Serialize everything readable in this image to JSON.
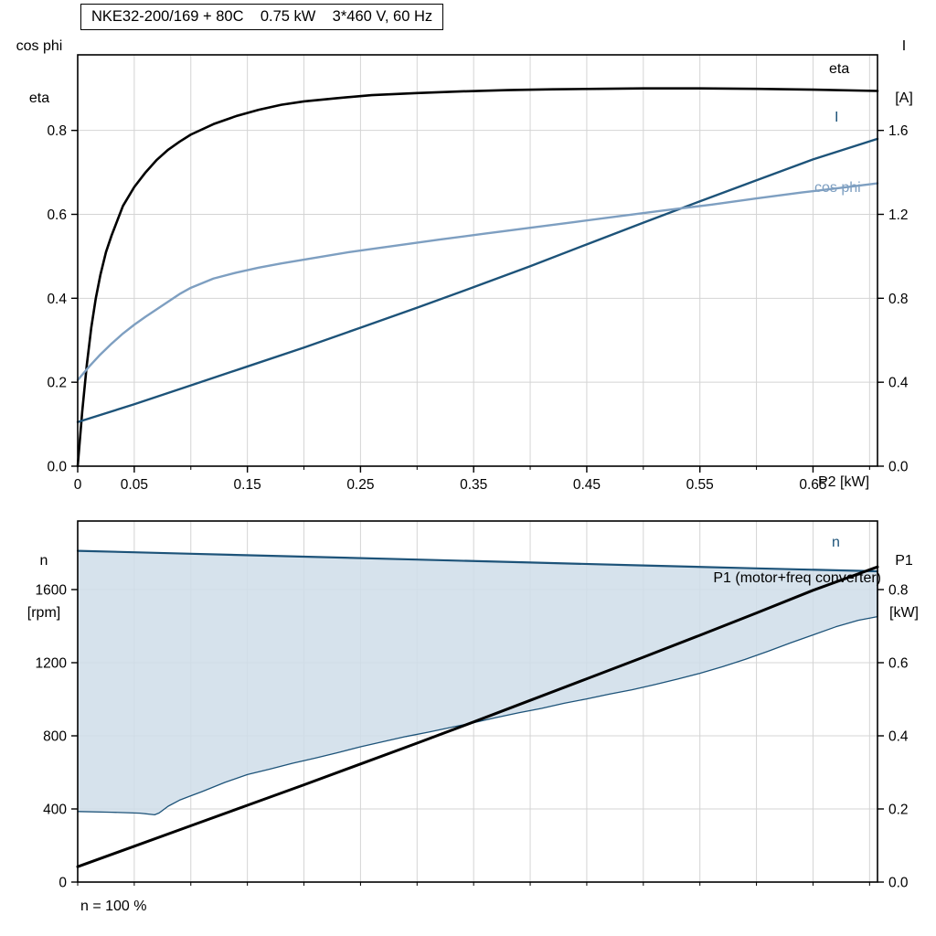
{
  "title_box": "NKE32-200/169 + 80C    0.75 kW    3*460 V, 60 Hz",
  "colors": {
    "black": "#000000",
    "dark_blue": "#1d5379",
    "light_blue": "#7e9fc1",
    "band_fill": "#cfdde9",
    "grid": "#d4d4d4"
  },
  "axes_corner_labels": {
    "top_left_1": "cos phi",
    "top_left_2": "eta",
    "top_right_1": "I",
    "top_right_2": "[A]",
    "bottom_left_1": "n",
    "bottom_left_2": "[rpm]",
    "bottom_right_1": "P1",
    "bottom_right_2": "[kW]"
  },
  "x_axis_label": "P2 [kW]",
  "curve_labels": {
    "eta": "eta",
    "current": "I",
    "cos_phi": "cos phi",
    "speed": "n",
    "p1": "P1 (motor+freq converter)",
    "speed_note": "n = 100 %"
  },
  "chart_data": [
    {
      "type": "line",
      "title": "NKE32-200/169 + 80C  0.75 kW  3*460 V, 60 Hz",
      "xlabel": "P2 [kW]",
      "ylabel_left": "cos phi / eta",
      "ylabel_right": "I [A]",
      "xlim": [
        0,
        0.707
      ],
      "ylim_left": [
        0,
        0.98
      ],
      "ylim_right": [
        0,
        1.96
      ],
      "grid_x_step": 0.05,
      "grid_y_left_step": 0.2,
      "legend_position": "right-inline",
      "x_ticks": {
        "values": [
          0,
          0.05,
          0.15,
          0.25,
          0.35,
          0.45,
          0.55,
          0.65
        ],
        "labels": [
          "0",
          "0.05",
          "0.15",
          "0.25",
          "0.35",
          "0.45",
          "0.55",
          "0.65"
        ]
      },
      "y_ticks_left": {
        "values": [
          0,
          0.2,
          0.4,
          0.6,
          0.8
        ],
        "labels": [
          "0.0",
          "0.2",
          "0.4",
          "0.6",
          "0.8"
        ]
      },
      "y_ticks_right": {
        "values": [
          0,
          0.4,
          0.8,
          1.2,
          1.6
        ],
        "labels": [
          "0.0",
          "0.4",
          "0.8",
          "1.2",
          "1.6"
        ]
      },
      "series": [
        {
          "name": "eta",
          "axis": "left",
          "color": "#000000",
          "width": 2.6,
          "points": [
            [
              0,
              0
            ],
            [
              0.004,
              0.13
            ],
            [
              0.008,
              0.24
            ],
            [
              0.012,
              0.33
            ],
            [
              0.016,
              0.4
            ],
            [
              0.02,
              0.455
            ],
            [
              0.025,
              0.51
            ],
            [
              0.03,
              0.55
            ],
            [
              0.04,
              0.62
            ],
            [
              0.05,
              0.665
            ],
            [
              0.06,
              0.7
            ],
            [
              0.07,
              0.73
            ],
            [
              0.08,
              0.754
            ],
            [
              0.09,
              0.773
            ],
            [
              0.1,
              0.79
            ],
            [
              0.12,
              0.815
            ],
            [
              0.14,
              0.834
            ],
            [
              0.16,
              0.849
            ],
            [
              0.18,
              0.861
            ],
            [
              0.2,
              0.869
            ],
            [
              0.23,
              0.877
            ],
            [
              0.26,
              0.884
            ],
            [
              0.3,
              0.889
            ],
            [
              0.34,
              0.893
            ],
            [
              0.38,
              0.896
            ],
            [
              0.42,
              0.898
            ],
            [
              0.46,
              0.899
            ],
            [
              0.5,
              0.9
            ],
            [
              0.55,
              0.9
            ],
            [
              0.6,
              0.899
            ],
            [
              0.65,
              0.897
            ],
            [
              0.707,
              0.894
            ]
          ]
        },
        {
          "name": "I",
          "axis": "right",
          "color": "#1d5379",
          "width": 2.4,
          "points": [
            [
              0,
              0.21
            ],
            [
              0.05,
              0.295
            ],
            [
              0.1,
              0.385
            ],
            [
              0.15,
              0.475
            ],
            [
              0.2,
              0.565
            ],
            [
              0.25,
              0.66
            ],
            [
              0.3,
              0.755
            ],
            [
              0.35,
              0.853
            ],
            [
              0.4,
              0.953
            ],
            [
              0.45,
              1.057
            ],
            [
              0.5,
              1.16
            ],
            [
              0.55,
              1.262
            ],
            [
              0.6,
              1.362
            ],
            [
              0.65,
              1.462
            ],
            [
              0.707,
              1.56
            ]
          ]
        },
        {
          "name": "cos phi",
          "axis": "left",
          "color": "#7e9fc1",
          "width": 2.4,
          "points": [
            [
              0,
              0.205
            ],
            [
              0.01,
              0.237
            ],
            [
              0.02,
              0.266
            ],
            [
              0.03,
              0.292
            ],
            [
              0.04,
              0.316
            ],
            [
              0.05,
              0.337
            ],
            [
              0.06,
              0.356
            ],
            [
              0.07,
              0.374
            ],
            [
              0.08,
              0.392
            ],
            [
              0.09,
              0.41
            ],
            [
              0.1,
              0.425
            ],
            [
              0.12,
              0.447
            ],
            [
              0.14,
              0.461
            ],
            [
              0.16,
              0.473
            ],
            [
              0.18,
              0.483
            ],
            [
              0.2,
              0.492
            ],
            [
              0.24,
              0.51
            ],
            [
              0.28,
              0.525
            ],
            [
              0.32,
              0.54
            ],
            [
              0.36,
              0.554
            ],
            [
              0.4,
              0.568
            ],
            [
              0.44,
              0.582
            ],
            [
              0.48,
              0.596
            ],
            [
              0.52,
              0.61
            ],
            [
              0.56,
              0.623
            ],
            [
              0.6,
              0.638
            ],
            [
              0.64,
              0.652
            ],
            [
              0.68,
              0.665
            ],
            [
              0.707,
              0.674
            ]
          ]
        }
      ]
    },
    {
      "type": "line",
      "title": "",
      "xlabel": "",
      "ylabel_left": "n [rpm]",
      "ylabel_right": "P1 [kW]",
      "xlim": [
        0,
        0.707
      ],
      "ylim_left": [
        0,
        1975
      ],
      "ylim_right": [
        0,
        0.9875
      ],
      "grid_x_step": 0.05,
      "grid_y_left_step": 400,
      "annotation": "n = 100 %",
      "x_ticks": {
        "values": [],
        "labels": []
      },
      "y_ticks_left": {
        "values": [
          0,
          400,
          800,
          1200,
          1600
        ],
        "labels": [
          "0",
          "400",
          "800",
          "1200",
          "1600"
        ]
      },
      "y_ticks_right": {
        "values": [
          0,
          0.2,
          0.4,
          0.6,
          0.8
        ],
        "labels": [
          "0.0",
          "0.2",
          "0.4",
          "0.6",
          "0.8"
        ]
      },
      "band": {
        "fill": "#cfdde9",
        "upper_series": "n",
        "lower_series": "n envelope lower"
      },
      "series": [
        {
          "name": "n",
          "axis": "left",
          "color": "#1d5379",
          "width": 2.2,
          "points": [
            [
              0,
              1812
            ],
            [
              0.1,
              1796
            ],
            [
              0.2,
              1780
            ],
            [
              0.3,
              1764
            ],
            [
              0.4,
              1748
            ],
            [
              0.5,
              1732
            ],
            [
              0.6,
              1716
            ],
            [
              0.707,
              1700
            ]
          ]
        },
        {
          "name": "n envelope lower",
          "axis": "left",
          "color": "#1d5379",
          "width": 1.3,
          "points": [
            [
              0,
              386
            ],
            [
              0.03,
              382
            ],
            [
              0.055,
              377
            ],
            [
              0.068,
              368
            ],
            [
              0.072,
              378
            ],
            [
              0.08,
              415
            ],
            [
              0.09,
              448
            ],
            [
              0.1,
              472
            ],
            [
              0.11,
              495
            ],
            [
              0.13,
              545
            ],
            [
              0.15,
              588
            ],
            [
              0.17,
              618
            ],
            [
              0.19,
              650
            ],
            [
              0.21,
              678
            ],
            [
              0.23,
              708
            ],
            [
              0.25,
              740
            ],
            [
              0.27,
              768
            ],
            [
              0.29,
              796
            ],
            [
              0.31,
              820
            ],
            [
              0.33,
              846
            ],
            [
              0.35,
              872
            ],
            [
              0.37,
              900
            ],
            [
              0.39,
              926
            ],
            [
              0.41,
              950
            ],
            [
              0.43,
              978
            ],
            [
              0.45,
              1002
            ],
            [
              0.47,
              1028
            ],
            [
              0.49,
              1052
            ],
            [
              0.51,
              1080
            ],
            [
              0.53,
              1110
            ],
            [
              0.55,
              1142
            ],
            [
              0.57,
              1178
            ],
            [
              0.59,
              1218
            ],
            [
              0.61,
              1262
            ],
            [
              0.63,
              1308
            ],
            [
              0.65,
              1352
            ],
            [
              0.67,
              1396
            ],
            [
              0.69,
              1432
            ],
            [
              0.707,
              1452
            ],
            [
              0.707,
              1700
            ]
          ]
        },
        {
          "name": "P1 (motor+freq converter)",
          "axis": "right",
          "color": "#000000",
          "width": 3,
          "points": [
            [
              0,
              0.042
            ],
            [
              0.05,
              0.098
            ],
            [
              0.1,
              0.154
            ],
            [
              0.15,
              0.21
            ],
            [
              0.2,
              0.266
            ],
            [
              0.25,
              0.323
            ],
            [
              0.3,
              0.38
            ],
            [
              0.35,
              0.438
            ],
            [
              0.4,
              0.497
            ],
            [
              0.45,
              0.556
            ],
            [
              0.5,
              0.615
            ],
            [
              0.55,
              0.675
            ],
            [
              0.6,
              0.736
            ],
            [
              0.65,
              0.798
            ],
            [
              0.707,
              0.862
            ]
          ]
        }
      ]
    }
  ]
}
